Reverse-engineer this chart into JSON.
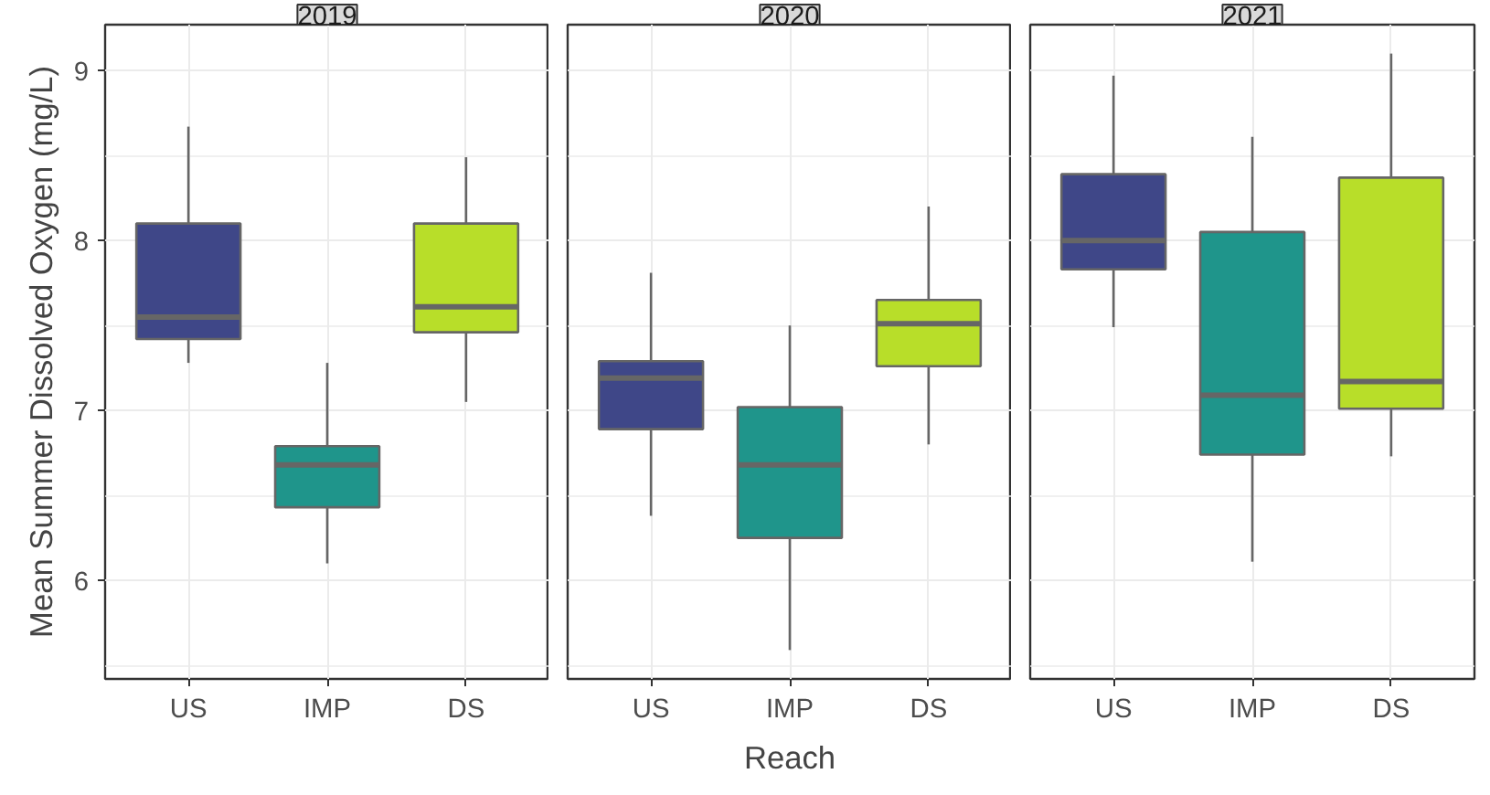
{
  "chart_data": [
    {
      "type": "box",
      "title": "2019",
      "ylabel": "Mean Summer Dissolved Oxygen (mg/L)",
      "categories": [
        "US",
        "IMP",
        "DS"
      ],
      "colors": [
        "#3f4788",
        "#1f958b",
        "#b8de29"
      ],
      "boxes": [
        {
          "low": 7.28,
          "q1": 7.42,
          "median": 7.55,
          "q3": 8.1,
          "high": 8.67
        },
        {
          "low": 6.1,
          "q1": 6.43,
          "median": 6.68,
          "q3": 6.79,
          "high": 7.28
        },
        {
          "low": 7.05,
          "q1": 7.46,
          "median": 7.61,
          "q3": 8.1,
          "high": 8.49
        }
      ],
      "ylim": [
        5.42,
        9.27
      ],
      "yticks": [
        {
          "value": 5.5,
          "label": null
        },
        6,
        {
          "value": 6.5,
          "label": null
        },
        7,
        {
          "value": 7.5,
          "label": null
        },
        8,
        {
          "value": 8.5,
          "label": null
        },
        9
      ],
      "grid": true
    },
    {
      "type": "box",
      "title": "2020",
      "xlabel": "Reach",
      "categories": [
        "US",
        "IMP",
        "DS"
      ],
      "colors": [
        "#3f4788",
        "#1f958b",
        "#b8de29"
      ],
      "boxes": [
        {
          "low": 6.38,
          "q1": 6.89,
          "median": 7.19,
          "q3": 7.29,
          "high": 7.81
        },
        {
          "low": 5.59,
          "q1": 6.25,
          "median": 6.68,
          "q3": 7.02,
          "high": 7.5
        },
        {
          "low": 6.8,
          "q1": 7.26,
          "median": 7.51,
          "q3": 7.65,
          "high": 8.2
        }
      ],
      "ylim": [
        5.42,
        9.27
      ],
      "yticks": [
        {
          "value": 5.5,
          "label": null
        },
        6,
        {
          "value": 6.5,
          "label": null
        },
        7,
        {
          "value": 7.5,
          "label": null
        },
        8,
        {
          "value": 8.5,
          "label": null
        },
        9
      ],
      "grid": true,
      "tick_labels": "x"
    },
    {
      "type": "box",
      "title": "2021",
      "categories": [
        "US",
        "IMP",
        "DS"
      ],
      "colors": [
        "#3f4788",
        "#1f958b",
        "#b8de29"
      ],
      "boxes": [
        {
          "low": 7.49,
          "q1": 7.83,
          "median": 8.0,
          "q3": 8.39,
          "high": 8.97
        },
        {
          "low": 6.11,
          "q1": 6.74,
          "median": 7.09,
          "q3": 8.05,
          "high": 8.61
        },
        {
          "low": 6.73,
          "q1": 7.01,
          "median": 7.17,
          "q3": 8.37,
          "high": 9.1
        }
      ],
      "ylim": [
        5.42,
        9.27
      ],
      "yticks": [
        {
          "value": 5.5,
          "label": null
        },
        6,
        {
          "value": 6.5,
          "label": null
        },
        7,
        {
          "value": 7.5,
          "label": null
        },
        8,
        {
          "value": 8.5,
          "label": null
        },
        9
      ],
      "grid": true,
      "tick_labels": "x"
    }
  ]
}
